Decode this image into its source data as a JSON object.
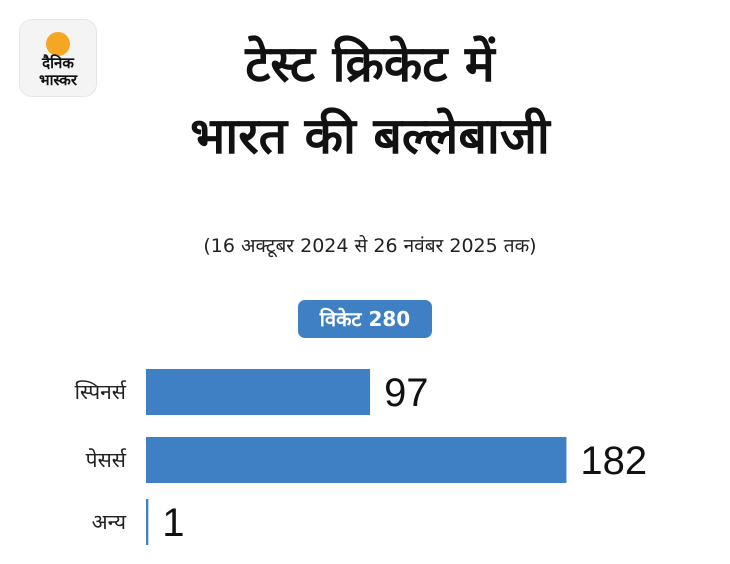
{
  "brand": {
    "line1": "दैनिक",
    "line2": "भास्कर",
    "dot_color": "#f5a623"
  },
  "header": {
    "title_line1": "टेस्ट क्रिकेट में",
    "title_line2": "भारत की बल्लेबाजी",
    "subtitle": "(16 अक्टूबर 2024 से 26 नवंबर 2025 तक)"
  },
  "badge": {
    "label": "विकेट 280"
  },
  "chart_data": {
    "type": "bar",
    "orientation": "horizontal",
    "categories": [
      "स्पिनर्स",
      "पेसर्स",
      "अन्य"
    ],
    "values": [
      97,
      182,
      1
    ],
    "value_labels": [
      "97",
      "182",
      "1"
    ],
    "bar_color": "#3f7fc4",
    "grid": false
  }
}
